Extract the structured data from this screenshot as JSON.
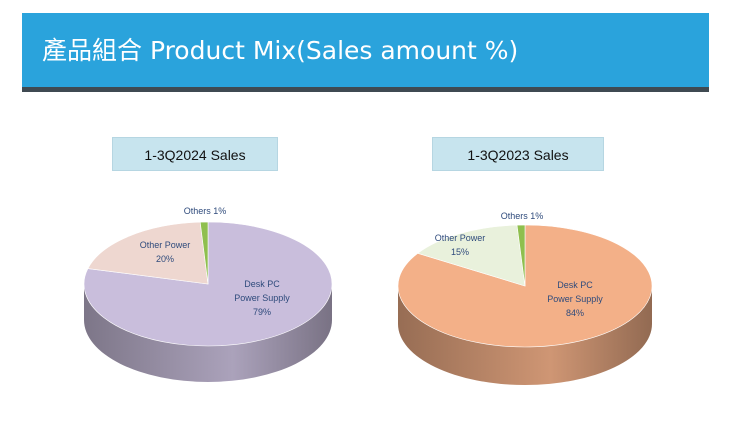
{
  "header": {
    "title": "產品組合 Product Mix(Sales amount %)"
  },
  "colors": {
    "banner": "#2aa3dc",
    "banner_rule": "#3f4a52",
    "label_box": "#c7e4ee",
    "others": "#8fbf4e",
    "left_main": "#c9bedc",
    "left_other_power": "#eed7d0",
    "right_main": "#f3b088",
    "right_other_power": "#e9f1dc",
    "slice_text": "#2f4b7c"
  },
  "chart_data": [
    {
      "type": "pie",
      "title": "1-3Q2024 Sales",
      "slices": [
        {
          "name": "Desk PC Power Supply",
          "label_lines": [
            "Desk PC",
            "Power Supply",
            "79%"
          ],
          "value": 79,
          "color": "#c9bedc"
        },
        {
          "name": "Other Power",
          "label_lines": [
            "Other Power",
            "20%"
          ],
          "value": 20,
          "color": "#eed7d0"
        },
        {
          "name": "Others",
          "label_lines": [
            "Others 1%"
          ],
          "value": 1,
          "color": "#8fbf4e"
        }
      ]
    },
    {
      "type": "pie",
      "title": "1-3Q2023 Sales",
      "slices": [
        {
          "name": "Desk PC Power Supply",
          "label_lines": [
            "Desk PC",
            "Power Supply",
            "84%"
          ],
          "value": 84,
          "color": "#f3b088"
        },
        {
          "name": "Other Power",
          "label_lines": [
            "Other Power",
            "15%"
          ],
          "value": 15,
          "color": "#e9f1dc"
        },
        {
          "name": "Others",
          "label_lines": [
            "Others  1%"
          ],
          "value": 1,
          "color": "#8fbf4e"
        }
      ]
    }
  ]
}
